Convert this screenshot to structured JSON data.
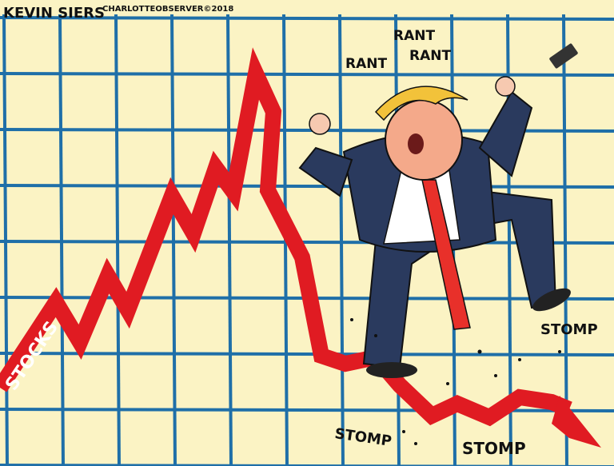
{
  "signature": "KEVIN SIERS",
  "credit": "CHARLOTTEOBSERVER©2018",
  "chart_label": "STOCKS",
  "sound_effects": {
    "rant_1": "RANT",
    "rant_2": "RANT",
    "rant_3": "RANT",
    "stomp_1": "STOMP",
    "stomp_2": "STOMP",
    "stomp_3": "STOMP"
  },
  "colors": {
    "background": "#fbf3c4",
    "grid": "#1f6fa8",
    "arrow": "#e01b22",
    "suit": "#2a3a5e",
    "tie": "#e8302a",
    "hair": "#f2c23a"
  }
}
